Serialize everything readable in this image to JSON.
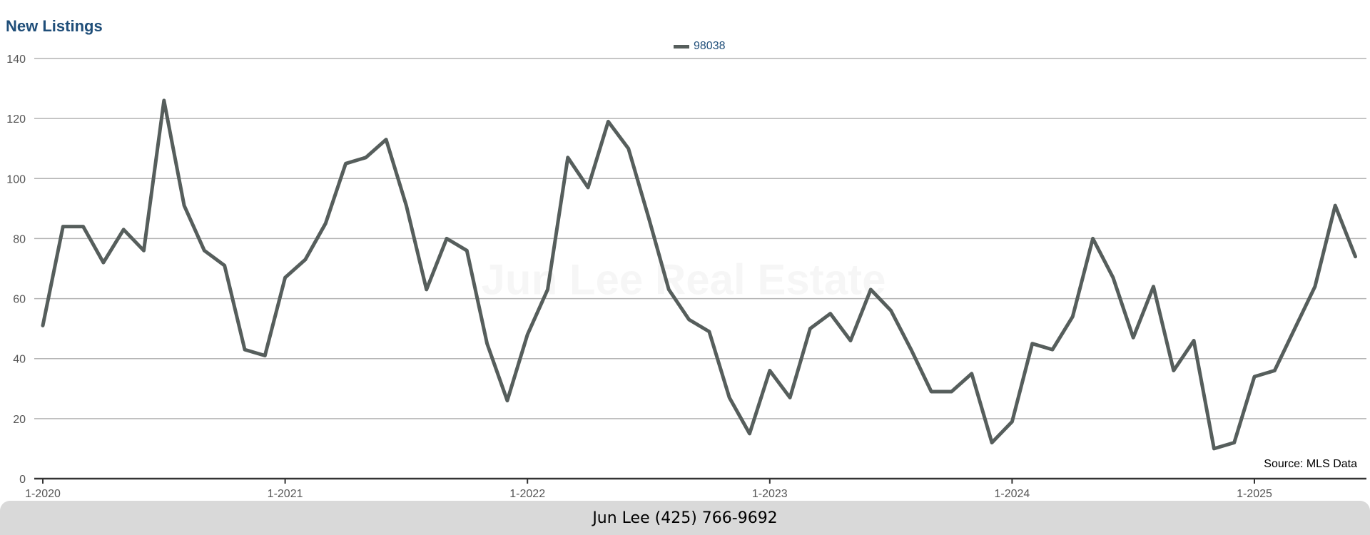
{
  "chart_data": {
    "type": "line",
    "title": "New Listings",
    "xlabel": "",
    "ylabel": "",
    "ylim": [
      0,
      140
    ],
    "yticks": [
      0,
      20,
      40,
      60,
      80,
      100,
      120,
      140
    ],
    "xticks": [
      "1-2020",
      "1-2021",
      "1-2022",
      "1-2023",
      "1-2024",
      "1-2025"
    ],
    "grid": true,
    "legend_position": "top-center",
    "series": [
      {
        "name": "98038",
        "color": "#565e5c",
        "values": [
          51,
          84,
          84,
          72,
          83,
          76,
          126,
          91,
          76,
          71,
          43,
          41,
          67,
          73,
          85,
          105,
          107,
          113,
          91,
          63,
          80,
          76,
          45,
          26,
          48,
          63,
          107,
          97,
          119,
          110,
          87,
          63,
          53,
          49,
          27,
          15,
          36,
          27,
          50,
          55,
          46,
          63,
          56,
          43,
          29,
          29,
          35,
          12,
          19,
          45,
          43,
          54,
          80,
          67,
          47,
          64,
          36,
          46,
          10,
          12,
          34,
          36,
          50,
          64,
          91,
          74
        ]
      }
    ],
    "annotation": "Source: MLS Data",
    "watermark": "Jun Lee Real Estate"
  },
  "footer": {
    "text": "Jun Lee (425) 766-9692"
  }
}
